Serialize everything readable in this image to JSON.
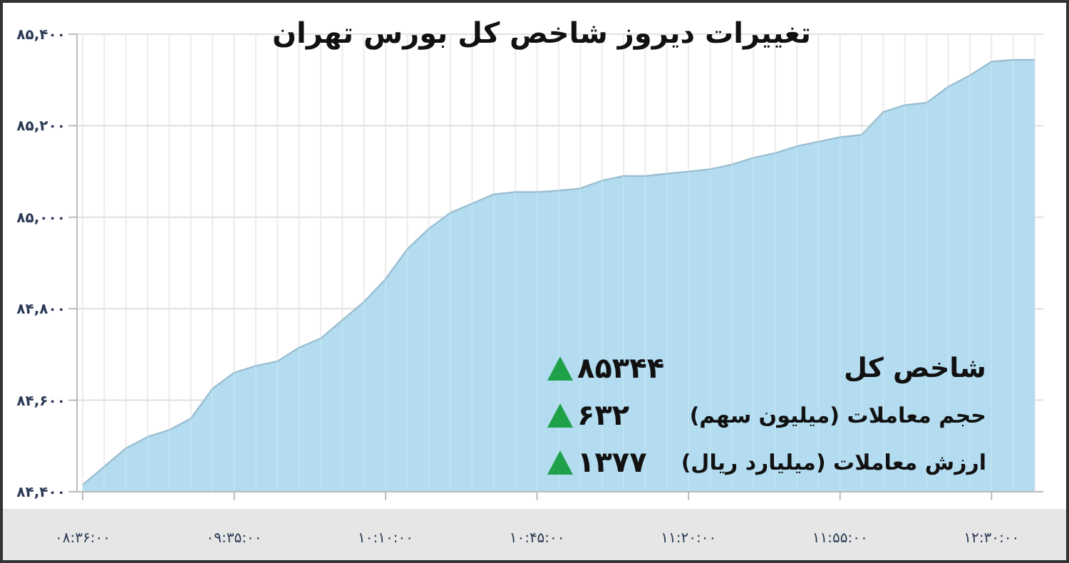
{
  "chart_data": {
    "type": "area",
    "title": "تغییرات دیروز شاخص کل بورس تهران",
    "categories": [
      "۰۸:۳۶:۰۰",
      null,
      null,
      null,
      null,
      null,
      null,
      "۰۹:۳۵:۰۰",
      null,
      null,
      null,
      null,
      null,
      null,
      "۱۰:۱۰:۰۰",
      null,
      null,
      null,
      null,
      null,
      null,
      "۱۰:۴۵:۰۰",
      null,
      null,
      null,
      null,
      null,
      null,
      "۱۱:۲۰:۰۰",
      null,
      null,
      null,
      null,
      null,
      null,
      "۱۱:۵۵:۰۰",
      null,
      null,
      null,
      null,
      null,
      null,
      "۱۲:۳۰:۰۰",
      null,
      null
    ],
    "series": [
      {
        "color": "#b3dcf0",
        "values": [
          84415,
          84455,
          84495,
          84520,
          84535,
          84560,
          84625,
          84660,
          84675,
          84685,
          84715,
          84735,
          84775,
          84815,
          84865,
          84930,
          84975,
          85010,
          85030,
          85050,
          85055,
          85055,
          85058,
          85063,
          85080,
          85090,
          85090,
          85095,
          85100,
          85105,
          85115,
          85130,
          85140,
          85155,
          85165,
          85175,
          85180,
          85230,
          85245,
          85250,
          85285,
          85310,
          85340,
          85344,
          85344
        ]
      }
    ],
    "ylim": [
      84400,
      85400
    ],
    "yticks": [
      {
        "value": 84400,
        "label": "۸۴,۴۰۰"
      },
      {
        "value": 84600,
        "label": "۸۴,۶۰۰"
      },
      {
        "value": 84800,
        "label": "۸۴,۸۰۰"
      },
      {
        "value": 85000,
        "label": "۸۵,۰۰۰"
      },
      {
        "value": 85200,
        "label": "۸۵,۲۰۰"
      },
      {
        "value": 85400,
        "label": "۸۵,۴۰۰"
      }
    ],
    "grid": true,
    "annotations": [
      "شاخص کل",
      "۸۵۳۴۴",
      "حجم معاملات (میلیون سهم)",
      "۶۳۲",
      "ارزش معاملات (میلیارد ریال)",
      "۱۳۷۷"
    ]
  }
}
